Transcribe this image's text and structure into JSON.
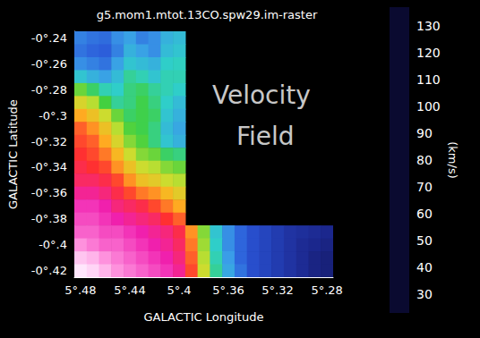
{
  "chart_data": {
    "type": "heatmap",
    "title": "g5.mom1.mtot.13CO.spw29.im-raster",
    "x_label": "GALACTIC Longitude",
    "y_label": "GALACTIC Latitude",
    "x": [
      5.48,
      5.47,
      5.46,
      5.45,
      5.44,
      5.43,
      5.42,
      5.41,
      5.4,
      5.39,
      5.38,
      5.37,
      5.36,
      5.35,
      5.34,
      5.33,
      5.32,
      5.31,
      5.3,
      5.29,
      5.28
    ],
    "y": [
      -0.24,
      -0.25,
      -0.26,
      -0.27,
      -0.28,
      -0.29,
      -0.3,
      -0.31,
      -0.32,
      -0.33,
      -0.34,
      -0.35,
      -0.36,
      -0.37,
      -0.38,
      -0.39,
      -0.4,
      -0.41,
      -0.42
    ],
    "values": [
      [
        50,
        48,
        47,
        52,
        55,
        50,
        52,
        58,
        60,
        null,
        null,
        null,
        null,
        null,
        null,
        null,
        null,
        null,
        null,
        null,
        null
      ],
      [
        48,
        46,
        45,
        50,
        58,
        55,
        52,
        60,
        62,
        null,
        null,
        null,
        null,
        null,
        null,
        null,
        null,
        null,
        null,
        null,
        null
      ],
      [
        52,
        50,
        48,
        55,
        62,
        60,
        58,
        64,
        65,
        null,
        null,
        null,
        null,
        null,
        null,
        null,
        null,
        null,
        null,
        null,
        null
      ],
      [
        62,
        58,
        55,
        60,
        68,
        66,
        62,
        66,
        66,
        null,
        null,
        null,
        null,
        null,
        null,
        null,
        null,
        null,
        null,
        null,
        null
      ],
      [
        78,
        72,
        66,
        64,
        70,
        72,
        68,
        66,
        64,
        null,
        null,
        null,
        null,
        null,
        null,
        null,
        null,
        null,
        null,
        null,
        null
      ],
      [
        88,
        84,
        75,
        68,
        70,
        74,
        70,
        64,
        60,
        null,
        null,
        null,
        null,
        null,
        null,
        null,
        null,
        null,
        null,
        null,
        null
      ],
      [
        96,
        92,
        86,
        78,
        72,
        74,
        72,
        62,
        58,
        null,
        null,
        null,
        null,
        null,
        null,
        null,
        null,
        null,
        null,
        null,
        null
      ],
      [
        102,
        98,
        92,
        84,
        76,
        74,
        70,
        60,
        56,
        null,
        null,
        null,
        null,
        null,
        null,
        null,
        null,
        null,
        null,
        null,
        null
      ],
      [
        104,
        102,
        96,
        88,
        80,
        76,
        70,
        62,
        58,
        null,
        null,
        null,
        null,
        null,
        null,
        null,
        null,
        null,
        null,
        null,
        null
      ],
      [
        106,
        104,
        100,
        94,
        86,
        80,
        78,
        72,
        70,
        null,
        null,
        null,
        null,
        null,
        null,
        null,
        null,
        null,
        null,
        null,
        null
      ],
      [
        108,
        106,
        104,
        98,
        92,
        86,
        84,
        80,
        78,
        null,
        null,
        null,
        null,
        null,
        null,
        null,
        null,
        null,
        null,
        null,
        null
      ],
      [
        110,
        110,
        108,
        104,
        98,
        92,
        90,
        86,
        84,
        null,
        null,
        null,
        null,
        null,
        null,
        null,
        null,
        null,
        null,
        null,
        null
      ],
      [
        114,
        114,
        112,
        108,
        104,
        100,
        98,
        94,
        90,
        null,
        null,
        null,
        null,
        null,
        null,
        null,
        null,
        null,
        null,
        null,
        null
      ],
      [
        118,
        118,
        116,
        112,
        110,
        108,
        104,
        100,
        96,
        null,
        null,
        null,
        null,
        null,
        null,
        null,
        null,
        null,
        null,
        null,
        null
      ],
      [
        120,
        120,
        118,
        116,
        114,
        112,
        110,
        106,
        102,
        null,
        null,
        null,
        null,
        null,
        null,
        null,
        null,
        null,
        null,
        null,
        null
      ],
      [
        122,
        122,
        120,
        120,
        118,
        116,
        114,
        112,
        108,
        98,
        80,
        62,
        52,
        46,
        42,
        40,
        38,
        36,
        35,
        34,
        33
      ],
      [
        126,
        124,
        122,
        122,
        120,
        118,
        116,
        114,
        110,
        100,
        82,
        64,
        52,
        46,
        42,
        40,
        38,
        36,
        34,
        33,
        32
      ],
      [
        132,
        130,
        126,
        124,
        122,
        120,
        118,
        116,
        112,
        102,
        84,
        66,
        54,
        46,
        42,
        40,
        38,
        36,
        34,
        32,
        31
      ],
      [
        136,
        134,
        130,
        126,
        124,
        122,
        120,
        118,
        114,
        104,
        86,
        68,
        56,
        48,
        42,
        40,
        38,
        36,
        34,
        32,
        31
      ]
    ],
    "xlim": [
      5.485,
      5.275
    ],
    "ylim": [
      -0.425,
      -0.235
    ],
    "xticks": [
      {
        "value": 5.48,
        "label": "5°.48"
      },
      {
        "value": 5.44,
        "label": "5°.44"
      },
      {
        "value": 5.4,
        "label": "5°.4"
      },
      {
        "value": 5.36,
        "label": "5°.36"
      },
      {
        "value": 5.32,
        "label": "5°.32"
      },
      {
        "value": 5.28,
        "label": "5°.28"
      }
    ],
    "yticks": [
      {
        "value": -0.24,
        "label": "-0°.24"
      },
      {
        "value": -0.26,
        "label": "-0°.26"
      },
      {
        "value": -0.28,
        "label": "-0°.28"
      },
      {
        "value": -0.3,
        "label": "-0°.3"
      },
      {
        "value": -0.32,
        "label": "-0°.32"
      },
      {
        "value": -0.34,
        "label": "-0°.34"
      },
      {
        "value": -0.36,
        "label": "-0°.36"
      },
      {
        "value": -0.38,
        "label": "-0°.38"
      },
      {
        "value": -0.4,
        "label": "-0°.4"
      },
      {
        "value": -0.42,
        "label": "-0°.42"
      }
    ],
    "colorbar": {
      "range": [
        23,
        137
      ],
      "ticks": [
        30,
        40,
        50,
        60,
        70,
        80,
        90,
        100,
        110,
        120,
        130
      ],
      "colors": [
        "#0a0a30",
        "#1c2890",
        "#2a55d8",
        "#3a9ee8",
        "#2fd0c8",
        "#40d040",
        "#c8e030",
        "#ffb020",
        "#ff3030",
        "#f020b0",
        "#ff98e0",
        "#ffeeff"
      ],
      "label": "(km/s)"
    },
    "annotations": [
      {
        "text": "Velocity Field",
        "x": 5.33,
        "y": -0.3
      }
    ]
  }
}
